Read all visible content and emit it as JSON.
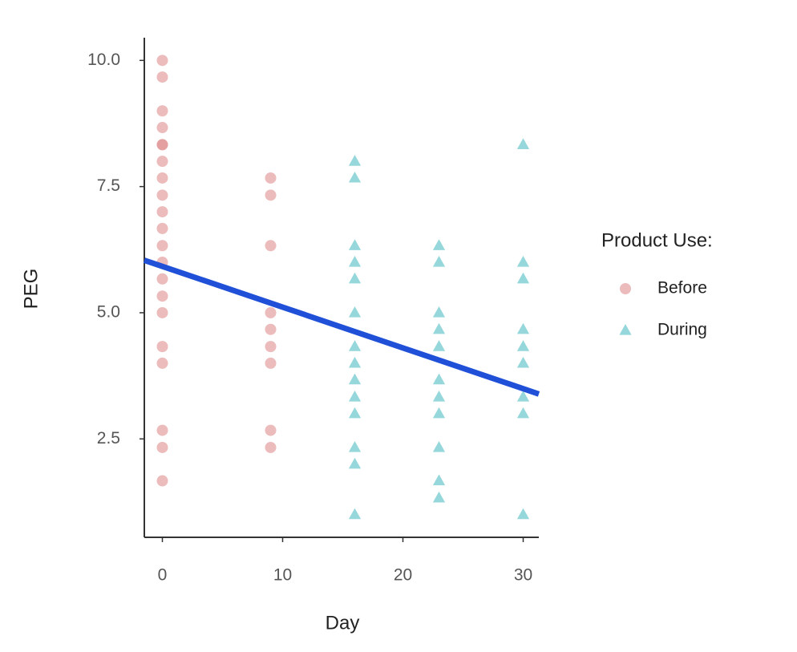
{
  "chart_data": {
    "type": "scatter",
    "x_label": "Day",
    "y_label": "PEG",
    "legend_title": "Product Use:",
    "xlim": [
      -1.5,
      31.3
    ],
    "ylim": [
      0.55,
      10.45
    ],
    "xticks": [
      0,
      10,
      20,
      30
    ],
    "yticks": [
      {
        "value": 10,
        "label": "10.0"
      },
      7.5,
      {
        "value": 5,
        "label": "5.0"
      },
      2.5
    ],
    "series": [
      {
        "name": "Before",
        "color": "#e08e8e",
        "marker": "circle",
        "x": [
          0,
          0,
          0,
          0,
          0,
          0,
          0,
          0,
          0,
          0,
          0,
          0,
          0,
          0,
          0,
          0,
          0,
          0,
          0,
          0,
          0,
          9,
          9,
          9,
          9,
          9,
          9,
          9,
          9,
          9
        ],
        "values": [
          10,
          9.67,
          9,
          8.67,
          8.33,
          8.33,
          8,
          7.67,
          7.33,
          7,
          6.67,
          6.33,
          6,
          5.67,
          5.33,
          5,
          4.33,
          4,
          2.67,
          2.33,
          1.67,
          7.67,
          7.33,
          6.33,
          5,
          4.67,
          4.33,
          4,
          2.67,
          2.33
        ]
      },
      {
        "name": "During",
        "color": "#4fbcc2",
        "marker": "triangle",
        "x": [
          16,
          16,
          16,
          16,
          16,
          16,
          16,
          16,
          16,
          16,
          16,
          16,
          16,
          16,
          23,
          23,
          23,
          23,
          23,
          23,
          23,
          23,
          23,
          23,
          23,
          30,
          30,
          30,
          30,
          30,
          30,
          30,
          30,
          30
        ],
        "values": [
          8,
          7.67,
          6.33,
          6,
          5.67,
          5,
          4.33,
          4,
          3.67,
          3.33,
          3,
          2.33,
          2,
          1,
          6.33,
          6,
          5,
          4.67,
          4.33,
          3.67,
          3.33,
          3,
          2.33,
          1.67,
          1.33,
          8.33,
          6,
          5.67,
          4.67,
          4.33,
          4,
          3.33,
          3,
          1
        ]
      }
    ],
    "trend": {
      "x": [
        -1.5,
        31.3
      ],
      "y": [
        6.04,
        3.39
      ],
      "color": "#2050d8"
    }
  }
}
